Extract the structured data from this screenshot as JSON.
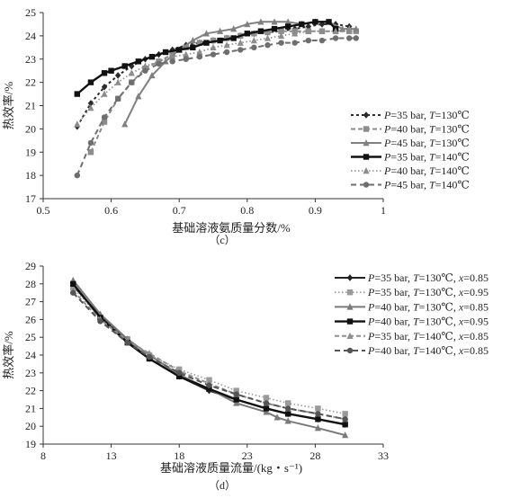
{
  "chart_data": [
    {
      "type": "line",
      "caption": "（c）",
      "xlabel": "基础溶液氨质量分数/%",
      "ylabel": "热效率/%",
      "xlim": [
        0.5,
        1
      ],
      "ylim": [
        17,
        25
      ],
      "xticks": [
        0.5,
        0.6,
        0.7,
        0.8,
        0.9,
        1
      ],
      "xtick_labels": [
        "0.5",
        "0.6",
        "0.7",
        "0.8",
        "0.9",
        "1"
      ],
      "yticks": [
        17,
        18,
        19,
        20,
        21,
        22,
        23,
        24,
        25
      ],
      "legend_position": "right",
      "series": [
        {
          "legend": [
            "P",
            "=35 bar, ",
            "T",
            "=130℃"
          ],
          "color": "#2b2b2b",
          "dash": "3,3",
          "marker": "diamond",
          "width": 2,
          "x": [
            0.55,
            0.57,
            0.59,
            0.61,
            0.63,
            0.65,
            0.67,
            0.69,
            0.71,
            0.73,
            0.75,
            0.77,
            0.79,
            0.81,
            0.83,
            0.85,
            0.87,
            0.89,
            0.91,
            0.93,
            0.95
          ],
          "y": [
            20.1,
            21.1,
            21.8,
            22.3,
            22.7,
            23.0,
            23.2,
            23.4,
            23.6,
            23.7,
            23.8,
            23.9,
            24.0,
            24.1,
            24.15,
            24.2,
            24.3,
            24.4,
            24.5,
            24.5,
            24.4
          ]
        },
        {
          "legend": [
            "P",
            "=40 bar, ",
            "T",
            "=130℃"
          ],
          "color": "#8c8c8c",
          "dash": "5,3",
          "marker": "square",
          "width": 2,
          "x": [
            0.57,
            0.59,
            0.61,
            0.63,
            0.65,
            0.67,
            0.69,
            0.71,
            0.73,
            0.75,
            0.77,
            0.79,
            0.81,
            0.83,
            0.85,
            0.87,
            0.89,
            0.91,
            0.93,
            0.95,
            0.96
          ],
          "y": [
            19.0,
            20.3,
            21.3,
            22.0,
            22.6,
            22.9,
            23.2,
            23.5,
            23.7,
            23.8,
            23.9,
            24.0,
            24.1,
            24.15,
            24.2,
            24.2,
            24.2,
            24.2,
            24.2,
            24.2,
            24.2
          ]
        },
        {
          "legend": [
            "P",
            "=45 bar, ",
            "T",
            "=130℃"
          ],
          "color": "#808080",
          "dash": "",
          "marker": "triangle",
          "width": 2,
          "x": [
            0.62,
            0.64,
            0.66,
            0.68,
            0.7,
            0.72,
            0.74,
            0.76,
            0.78,
            0.8,
            0.82,
            0.84,
            0.86,
            0.88,
            0.9,
            0.92,
            0.94,
            0.96
          ],
          "y": [
            20.2,
            21.4,
            22.3,
            22.9,
            23.4,
            23.8,
            24.1,
            24.2,
            24.3,
            24.5,
            24.6,
            24.6,
            24.6,
            24.5,
            24.6,
            24.6,
            24.3,
            24.3
          ]
        },
        {
          "legend": [
            "P",
            "=35 bar, ",
            "T",
            "=140℃"
          ],
          "color": "#111111",
          "dash": "",
          "marker": "square",
          "width": 2.4,
          "x": [
            0.55,
            0.57,
            0.59,
            0.6,
            0.62,
            0.64,
            0.66,
            0.68,
            0.7,
            0.72,
            0.74,
            0.76,
            0.78,
            0.8,
            0.82,
            0.84,
            0.86,
            0.88,
            0.9,
            0.92,
            0.93
          ],
          "y": [
            21.5,
            22.0,
            22.4,
            22.5,
            22.7,
            22.9,
            23.1,
            23.3,
            23.4,
            23.5,
            23.7,
            23.8,
            23.9,
            24.1,
            24.2,
            24.3,
            24.4,
            24.5,
            24.6,
            24.6,
            24.3
          ]
        },
        {
          "legend": [
            "P",
            "=40 bar, ",
            "T",
            "=140℃"
          ],
          "color": "#8c8c8c",
          "dash": "1.5,2.5",
          "marker": "triangle",
          "width": 1.6,
          "x": [
            0.55,
            0.57,
            0.59,
            0.61,
            0.63,
            0.65,
            0.67,
            0.69,
            0.71,
            0.73,
            0.75,
            0.77,
            0.79,
            0.81,
            0.83,
            0.85,
            0.87,
            0.89,
            0.91,
            0.93,
            0.95
          ],
          "y": [
            20.2,
            20.9,
            21.5,
            22.0,
            22.4,
            22.7,
            22.9,
            23.1,
            23.2,
            23.3,
            23.5,
            23.6,
            23.7,
            23.8,
            23.9,
            24.0,
            24.1,
            24.2,
            24.2,
            24.2,
            24.3
          ]
        },
        {
          "legend": [
            "P",
            "=45 bar, ",
            "T",
            "=140℃"
          ],
          "color": "#6e6e6e",
          "dash": "6,4",
          "marker": "circle",
          "width": 2,
          "x": [
            0.55,
            0.57,
            0.59,
            0.61,
            0.63,
            0.65,
            0.67,
            0.69,
            0.71,
            0.73,
            0.75,
            0.77,
            0.79,
            0.81,
            0.83,
            0.85,
            0.87,
            0.89,
            0.91,
            0.93,
            0.95,
            0.96
          ],
          "y": [
            18.0,
            19.4,
            20.5,
            21.3,
            22.0,
            22.5,
            22.8,
            22.9,
            23.0,
            23.1,
            23.2,
            23.3,
            23.4,
            23.5,
            23.6,
            23.7,
            23.7,
            23.8,
            23.8,
            23.9,
            23.9,
            23.9
          ]
        }
      ]
    },
    {
      "type": "line",
      "caption": "（d）",
      "xlabel": "基础溶液质量流量/(kg・s⁻¹)",
      "ylabel": "热效率/%",
      "xlim": [
        8,
        33
      ],
      "ylim": [
        19,
        29
      ],
      "xticks": [
        8,
        13,
        18,
        23,
        28,
        33
      ],
      "xtick_labels": [
        "8",
        "13",
        "18",
        "23",
        "28",
        "33"
      ],
      "yticks": [
        19,
        20,
        21,
        22,
        23,
        24,
        25,
        26,
        27,
        28,
        29
      ],
      "legend_position": "right",
      "series": [
        {
          "legend": [
            "P",
            "=35 bar, ",
            "T",
            "=130℃, ",
            "x",
            "=0.85"
          ],
          "color": "#222222",
          "dash": "",
          "marker": "diamond",
          "width": 2,
          "x": [
            10.2,
            12.2,
            14.2,
            15.8,
            18.0,
            20.2,
            22.2,
            24.4,
            26.0,
            28.2,
            30.2
          ],
          "y": [
            27.9,
            26.2,
            24.8,
            23.8,
            22.8,
            22.0,
            21.5,
            21.0,
            20.7,
            20.4,
            20.1
          ]
        },
        {
          "legend": [
            "P",
            "=35 bar, ",
            "T",
            "=130℃, ",
            "x",
            "=0.95"
          ],
          "color": "#9a9a9a",
          "dash": "1.5,2.5",
          "marker": "square",
          "width": 1.6,
          "x": [
            10.2,
            12.2,
            14.2,
            15.8,
            18.0,
            20.2,
            22.2,
            24.4,
            26.0,
            28.2,
            30.2
          ],
          "y": [
            27.8,
            26.1,
            24.9,
            24.0,
            23.2,
            22.6,
            22.0,
            21.6,
            21.3,
            21.0,
            20.7
          ]
        },
        {
          "legend": [
            "P",
            "=40 bar, ",
            "T",
            "=130℃, ",
            "x",
            "=0.85"
          ],
          "color": "#7a7a7a",
          "dash": "",
          "marker": "triangle",
          "width": 2,
          "x": [
            10.2,
            12.2,
            14.2,
            15.8,
            18.0,
            20.2,
            22.2,
            24.4,
            25.2,
            26.0,
            28.2,
            30.2
          ],
          "y": [
            28.2,
            26.3,
            24.9,
            24.0,
            22.9,
            22.1,
            21.3,
            20.8,
            20.5,
            20.3,
            19.9,
            19.5
          ]
        },
        {
          "legend": [
            "P",
            "=40 bar, ",
            "T",
            "=130℃, ",
            "x",
            "=0.95"
          ],
          "color": "#111111",
          "dash": "",
          "marker": "square",
          "width": 2.4,
          "x": [
            10.2,
            12.2,
            14.2,
            15.8,
            18.0,
            20.2,
            22.2,
            24.4,
            26.0,
            28.2,
            30.2
          ],
          "y": [
            28.0,
            26.1,
            24.7,
            23.8,
            22.8,
            22.1,
            21.5,
            21.0,
            20.7,
            20.4,
            20.1
          ]
        },
        {
          "legend": [
            "P",
            "=35 bar, ",
            "T",
            "=140℃, ",
            "x",
            "=0.85"
          ],
          "color": "#8f8f8f",
          "dash": "5,3",
          "marker": "triangle",
          "width": 2,
          "x": [
            10.2,
            12.2,
            14.2,
            15.8,
            18.0,
            20.2,
            22.2,
            24.4,
            26.0,
            28.2,
            30.2
          ],
          "y": [
            27.6,
            26.0,
            24.8,
            24.1,
            23.1,
            22.4,
            21.8,
            21.3,
            21.0,
            20.7,
            20.4
          ]
        },
        {
          "legend": [
            "P",
            "=40 bar, ",
            "T",
            "=140℃, ",
            "x",
            "=0.85"
          ],
          "color": "#555555",
          "dash": "6,4",
          "marker": "circle",
          "width": 2,
          "x": [
            10.2,
            12.2,
            14.2,
            15.8,
            18.0,
            20.2,
            22.2,
            24.4,
            26.0,
            28.2,
            30.2
          ],
          "y": [
            27.5,
            25.9,
            24.7,
            23.9,
            23.0,
            22.3,
            21.8,
            21.3,
            21.0,
            20.7,
            20.4
          ]
        }
      ]
    }
  ]
}
